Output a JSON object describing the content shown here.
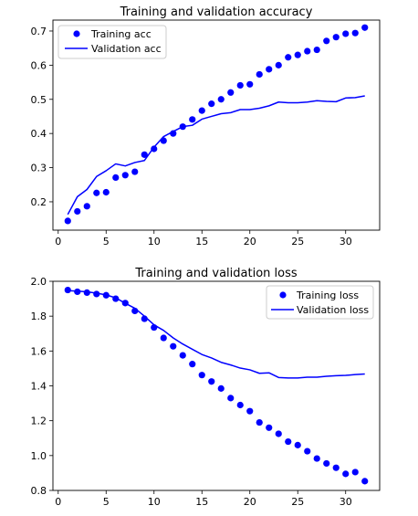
{
  "chart_data": [
    {
      "type": "line",
      "title": "Training and validation accuracy",
      "xlabel": "",
      "ylabel": "",
      "xlim": [
        -0.55,
        33.55
      ],
      "ylim": [
        0.117,
        0.732
      ],
      "xticks": [
        0,
        5,
        10,
        15,
        20,
        25,
        30
      ],
      "yticks": [
        0.2,
        0.3,
        0.4,
        0.5,
        0.6,
        0.7
      ],
      "ytick_labels": [
        "0.2",
        "0.3",
        "0.4",
        "0.5",
        "0.6",
        "0.7"
      ],
      "grid": false,
      "legend_position": "upper-left",
      "x": [
        1,
        2,
        3,
        4,
        5,
        6,
        7,
        8,
        9,
        10,
        11,
        12,
        13,
        14,
        15,
        16,
        17,
        18,
        19,
        20,
        21,
        22,
        23,
        24,
        25,
        26,
        27,
        28,
        29,
        30,
        31,
        32
      ],
      "series": [
        {
          "name": "Training acc",
          "style": "dots",
          "color": "#0000ff",
          "values": [
            0.144,
            0.172,
            0.187,
            0.226,
            0.228,
            0.271,
            0.278,
            0.288,
            0.338,
            0.355,
            0.379,
            0.4,
            0.42,
            0.441,
            0.467,
            0.487,
            0.5,
            0.52,
            0.541,
            0.544,
            0.573,
            0.588,
            0.6,
            0.623,
            0.63,
            0.641,
            0.645,
            0.671,
            0.682,
            0.692,
            0.694,
            0.71
          ]
        },
        {
          "name": "Validation acc",
          "style": "line",
          "color": "#0000ff",
          "values": [
            0.163,
            0.215,
            0.236,
            0.274,
            0.291,
            0.311,
            0.305,
            0.315,
            0.321,
            0.36,
            0.391,
            0.406,
            0.42,
            0.424,
            0.442,
            0.45,
            0.458,
            0.461,
            0.47,
            0.47,
            0.474,
            0.481,
            0.492,
            0.49,
            0.49,
            0.492,
            0.496,
            0.494,
            0.493,
            0.504,
            0.505,
            0.51
          ]
        }
      ]
    },
    {
      "type": "line",
      "title": "Training and validation loss",
      "xlabel": "",
      "ylabel": "",
      "xlim": [
        -0.55,
        33.55
      ],
      "ylim": [
        0.8,
        2.0
      ],
      "xticks": [
        0,
        5,
        10,
        15,
        20,
        25,
        30
      ],
      "yticks": [
        0.8,
        1.0,
        1.2,
        1.4,
        1.6,
        1.8,
        2.0
      ],
      "ytick_labels": [
        "0.8",
        "1.0",
        "1.2",
        "1.4",
        "1.6",
        "1.8",
        "2.0"
      ],
      "grid": false,
      "legend_position": "upper-right",
      "x": [
        1,
        2,
        3,
        4,
        5,
        6,
        7,
        8,
        9,
        10,
        11,
        12,
        13,
        14,
        15,
        16,
        17,
        18,
        19,
        20,
        21,
        22,
        23,
        24,
        25,
        26,
        27,
        28,
        29,
        30,
        31,
        32
      ],
      "series": [
        {
          "name": "Training loss",
          "style": "dots",
          "color": "#0000ff",
          "values": [
            1.95,
            1.94,
            1.935,
            1.927,
            1.92,
            1.9,
            1.875,
            1.83,
            1.785,
            1.735,
            1.675,
            1.627,
            1.575,
            1.525,
            1.462,
            1.425,
            1.385,
            1.33,
            1.29,
            1.255,
            1.19,
            1.16,
            1.125,
            1.08,
            1.06,
            1.025,
            0.983,
            0.955,
            0.93,
            0.895,
            0.905,
            0.853
          ]
        },
        {
          "name": "Validation loss",
          "style": "line",
          "color": "#0000ff",
          "values": [
            1.946,
            1.944,
            1.94,
            1.932,
            1.922,
            1.905,
            1.874,
            1.845,
            1.8,
            1.75,
            1.718,
            1.675,
            1.64,
            1.61,
            1.58,
            1.56,
            1.535,
            1.52,
            1.502,
            1.492,
            1.472,
            1.475,
            1.448,
            1.445,
            1.445,
            1.45,
            1.45,
            1.455,
            1.458,
            1.46,
            1.465,
            1.468
          ]
        }
      ]
    }
  ]
}
